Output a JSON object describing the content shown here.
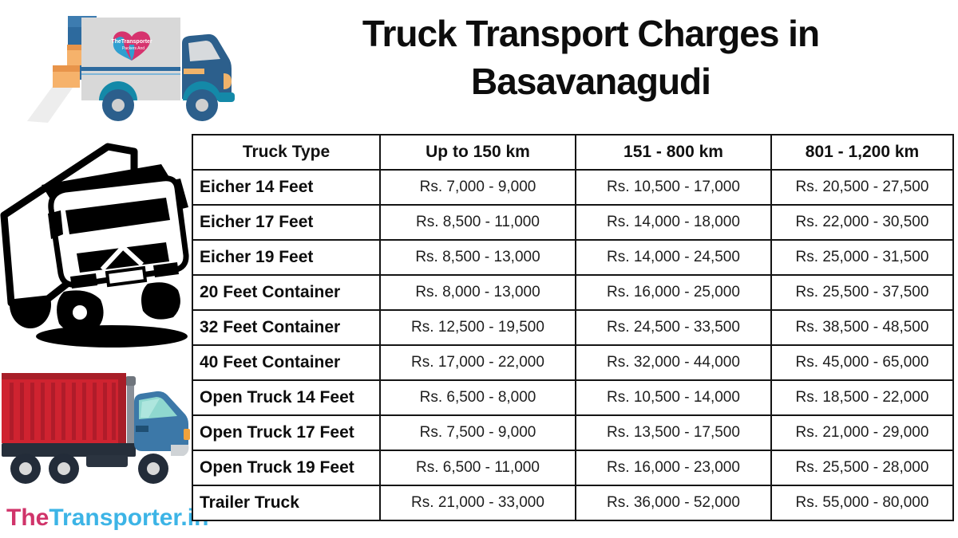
{
  "header": {
    "title_line1": "Truck Transport Charges in",
    "title_line2": "Basavanagudi"
  },
  "brand": {
    "prefix": "The",
    "suffix": "Transporter.in"
  },
  "illustrations": {
    "logo_truck": "moving-truck-logo",
    "lineart_truck": "black-lineart-truck",
    "red_truck": "red-container-truck"
  },
  "colors": {
    "title_text": "#0d0d0d",
    "table_border": "#141414",
    "brand_pink": "#d0346a",
    "brand_blue": "#3cb4e6",
    "container_red": "#cf2330",
    "container_red_dark": "#a81e28",
    "cab_blue": "#3c78a8",
    "logo_cab_navy": "#2c5f8c",
    "chassis_dark": "#262f3b",
    "box_orange": "#f6b26b",
    "accent_teal": "#1489a8"
  },
  "chart_data": {
    "type": "table",
    "title": "Truck Transport Charges in Basavanagudi",
    "columns": [
      "Truck Type",
      "Up to 150 km",
      "151 - 800 km",
      "801 - 1,200 km"
    ],
    "rows": [
      [
        "Eicher 14 Feet",
        "Rs. 7,000 - 9,000",
        "Rs. 10,500 - 17,000",
        "Rs. 20,500 - 27,500"
      ],
      [
        "Eicher 17 Feet",
        "Rs. 8,500 - 11,000",
        "Rs. 14,000 - 18,000",
        "Rs. 22,000 - 30,500"
      ],
      [
        "Eicher 19 Feet",
        "Rs. 8,500 - 13,000",
        "Rs. 14,000 - 24,500",
        "Rs. 25,000 - 31,500"
      ],
      [
        "20 Feet Container",
        "Rs. 8,000 - 13,000",
        "Rs. 16,000 - 25,000",
        "Rs. 25,500 - 37,500"
      ],
      [
        "32 Feet Container",
        "Rs. 12,500 - 19,500",
        "Rs. 24,500 - 33,500",
        "Rs. 38,500 - 48,500"
      ],
      [
        "40 Feet Container",
        "Rs. 17,000 - 22,000",
        "Rs. 32,000 - 44,000",
        "Rs. 45,000 - 65,000"
      ],
      [
        "Open Truck 14 Feet",
        "Rs. 6,500 - 8,000",
        "Rs. 10,500 - 14,000",
        "Rs. 18,500 - 22,000"
      ],
      [
        "Open Truck 17 Feet",
        "Rs. 7,500 - 9,000",
        "Rs. 13,500 - 17,500",
        "Rs. 21,000 - 29,000"
      ],
      [
        "Open Truck 19 Feet",
        "Rs. 6,500 - 11,000",
        "Rs. 16,000 - 23,000",
        "Rs. 25,500 - 28,000"
      ],
      [
        "Trailer Truck",
        "Rs. 21,000 - 33,000",
        "Rs. 36,000 - 52,000",
        "Rs. 55,000 - 80,000"
      ]
    ]
  }
}
